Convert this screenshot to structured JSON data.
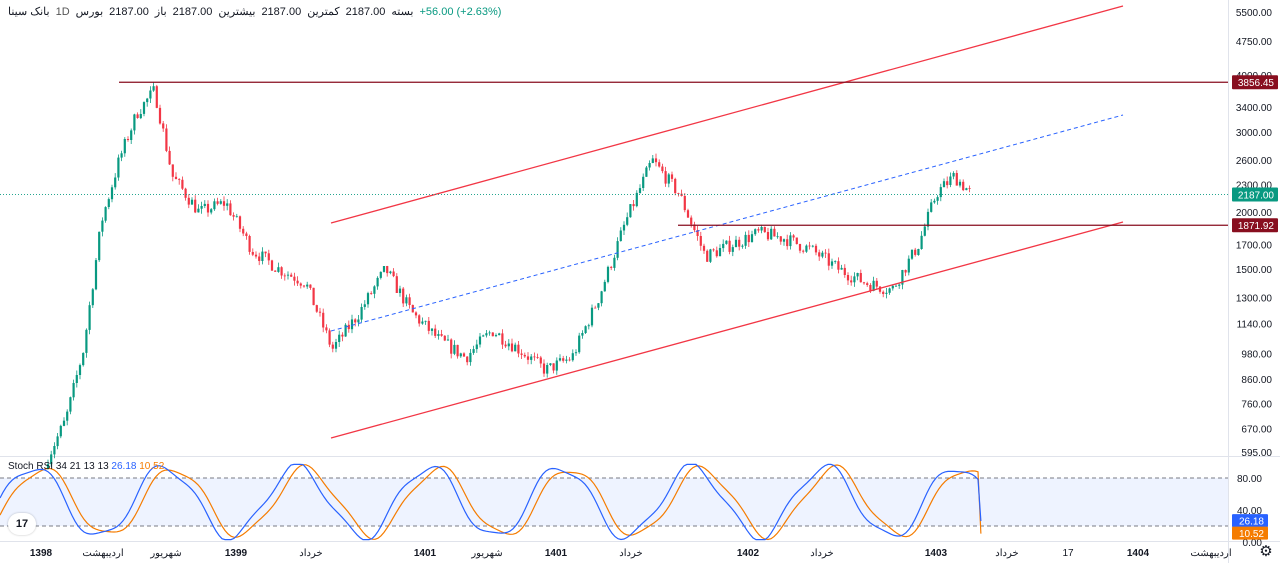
{
  "legend": {
    "name": "بانک سینا",
    "interval": "1D",
    "exchange": "بورس",
    "open_label": "باز",
    "open": "2187.00",
    "high_label": "بیشترین",
    "high": "2187.00",
    "low_label": "کمترین",
    "low": "2187.00",
    "close_label": "بسته",
    "close": "2187.00",
    "change": "+56.00 (+2.63%)"
  },
  "indicator": {
    "name": "Stoch RSI",
    "params": "34 21 13 13",
    "k_value": "26.18",
    "d_value": "10.52"
  },
  "price_axis_labels": [
    "5500.00",
    "4750.00",
    "4000.00",
    "3400.00",
    "3000.00",
    "2600.00",
    "2300.00",
    "2000.00",
    "1700.00",
    "1500.00",
    "1300.00",
    "1140.00",
    "980.00",
    "860.00",
    "760.00",
    "670.00",
    "595.00"
  ],
  "price_tags": {
    "resistance": "3856.45",
    "last": "2187.00",
    "support": "1871.92"
  },
  "osc_axis_labels": [
    "80.00",
    "40.00",
    "0.00"
  ],
  "osc_tags": {
    "k": "26.18",
    "d": "10.52"
  },
  "time_axis_labels": [
    "1398",
    "اردیبهشت",
    "شهریور",
    "1399",
    "خرداد",
    "1401",
    "شهریور",
    "1401",
    "خرداد",
    "1402",
    "خرداد",
    "1403",
    "خرداد",
    "17",
    "1404",
    "اردیبهشت"
  ],
  "tv_logo": "17",
  "colors": {
    "up": "#089981",
    "down": "#f23645",
    "channel": "#f23645",
    "midline": "#2962ff",
    "hline": "#880e1f",
    "k": "#2962ff",
    "d": "#f57c00"
  },
  "chart_data": {
    "type": "candlestick",
    "scale": "log",
    "title": "بانک سینا",
    "price_series": {
      "name": "بانک سینا",
      "x": [
        1398.0,
        1398.1,
        1398.2,
        1398.3,
        1398.4,
        1398.5,
        1398.6,
        1398.7,
        1398.85,
        1399.0,
        1399.15,
        1399.3,
        1399.45,
        1399.6,
        1399.75,
        1399.9,
        1400.05,
        1400.2,
        1400.35,
        1400.5,
        1400.65,
        1400.8,
        1400.95,
        1401.1,
        1401.25,
        1401.4,
        1401.55,
        1401.7,
        1401.85,
        1402.0,
        1402.15,
        1402.3,
        1402.45,
        1402.6,
        1402.75,
        1402.9,
        1403.0,
        1403.1,
        1403.2
      ],
      "close": [
        580,
        700,
        1000,
        1900,
        2600,
        3300,
        3700,
        2400,
        2000,
        2100,
        1650,
        1500,
        1400,
        1000,
        1200,
        1500,
        1200,
        1050,
        960,
        1100,
        1000,
        900,
        960,
        1300,
        1900,
        2600,
        2200,
        1600,
        1700,
        1800,
        1750,
        1650,
        1500,
        1400,
        1350,
        1700,
        2200,
        2400,
        2187
      ]
    },
    "horizontal_lines": [
      {
        "name": "resistance",
        "value": 3856.45
      },
      {
        "name": "support",
        "value": 1871.92
      }
    ],
    "last_price": 2187.0,
    "oscillator": {
      "name": "Stoch RSI",
      "k_last": 26.18,
      "d_last": 10.52,
      "levels": [
        80,
        20
      ],
      "ylim": [
        0,
        100
      ]
    },
    "x_ticks": [
      "1398",
      "اردیبهشت",
      "شهریور",
      "1399",
      "خرداد",
      "1401",
      "شهریور",
      "1401",
      "خرداد",
      "1402",
      "خرداد",
      "1403",
      "خرداد",
      "17",
      "1404",
      "اردیبهشت"
    ],
    "y_ticks": [
      "5500.00",
      "4750.00",
      "4000.00",
      "3400.00",
      "3000.00",
      "2600.00",
      "2300.00",
      "2000.00",
      "1700.00",
      "1500.00",
      "1300.00",
      "1140.00",
      "980.00",
      "860.00",
      "760.00",
      "670.00",
      "595.00"
    ]
  }
}
